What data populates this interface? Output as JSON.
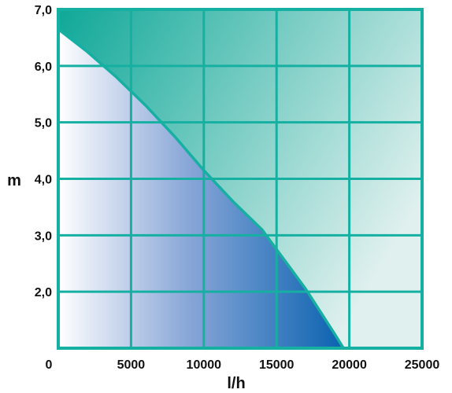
{
  "chart_data": {
    "type": "area",
    "title": "",
    "xlabel": "l/h",
    "ylabel": "m",
    "xlim": [
      0,
      25000
    ],
    "ylim": [
      1.0,
      7.0
    ],
    "x_ticks": [
      0,
      5000,
      10000,
      15000,
      20000,
      25000
    ],
    "x_tick_labels": [
      "0",
      "5000",
      "10000",
      "15000",
      "20000",
      "25000"
    ],
    "y_ticks": [
      2.0,
      3.0,
      4.0,
      5.0,
      6.0,
      7.0
    ],
    "y_tick_labels": [
      "2,0",
      "3,0",
      "4,0",
      "5,0",
      "6,0",
      "7,0"
    ],
    "grid": true,
    "series": [
      {
        "x": [
          0,
          2000,
          4000,
          6000,
          8000,
          10000,
          12000,
          14000,
          15000,
          16000,
          17000,
          18000,
          19000,
          19600
        ],
        "y": [
          6.65,
          6.25,
          5.8,
          5.3,
          4.75,
          4.15,
          3.6,
          3.1,
          2.75,
          2.4,
          2.05,
          1.65,
          1.25,
          1.0
        ]
      }
    ],
    "colors": {
      "frame": "#16b0a2",
      "grid": "#16b0a2",
      "curve": "#16b0a2",
      "above_fill_dark": "#0fa898",
      "above_fill_light": "#dff0ee",
      "below_fill_light": "#ffffff",
      "below_fill_dark": "#0a62b0"
    }
  }
}
